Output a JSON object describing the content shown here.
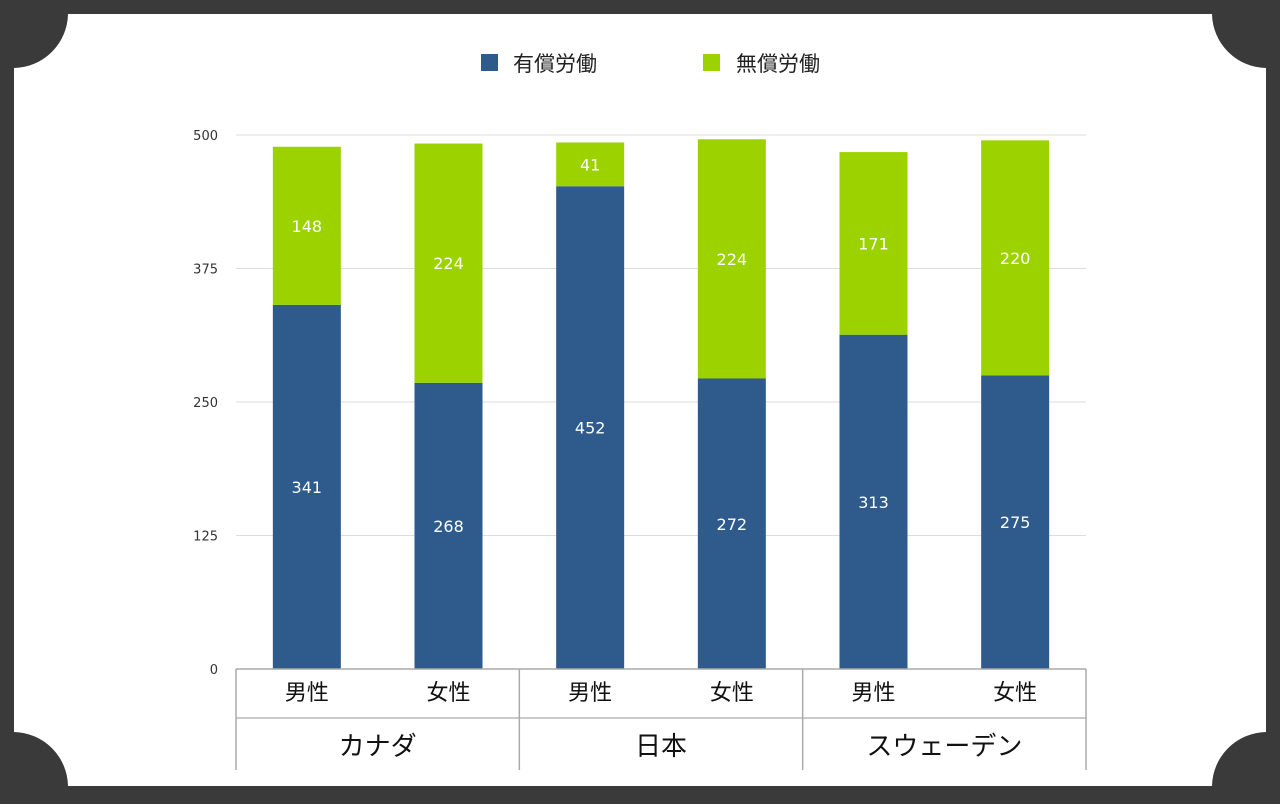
{
  "colors": {
    "paid": "#2e5a8c",
    "unpaid": "#9bd200",
    "background": "#ffffff",
    "frame": "#3a3a3a",
    "grid": "#dddddd",
    "axis": "#aaaaaa"
  },
  "chart_data": {
    "type": "bar",
    "stacked": true,
    "title": "",
    "xlabel": "",
    "ylabel": "",
    "ylim": [
      0,
      500
    ],
    "yticks": [
      0,
      125,
      250,
      375,
      500
    ],
    "grid": true,
    "legend_position": "top",
    "categories": [
      "男性",
      "女性",
      "男性",
      "女性",
      "男性",
      "女性"
    ],
    "groups": [
      {
        "label": "カナダ",
        "categories": [
          "男性",
          "女性"
        ]
      },
      {
        "label": "日本",
        "categories": [
          "男性",
          "女性"
        ]
      },
      {
        "label": "スウェーデン",
        "categories": [
          "男性",
          "女性"
        ]
      }
    ],
    "series": [
      {
        "name": "有償労働",
        "color": "#2e5a8c",
        "values": [
          341,
          268,
          452,
          272,
          313,
          275
        ]
      },
      {
        "name": "無償労働",
        "color": "#9bd200",
        "values": [
          148,
          224,
          41,
          224,
          171,
          220
        ]
      }
    ]
  }
}
